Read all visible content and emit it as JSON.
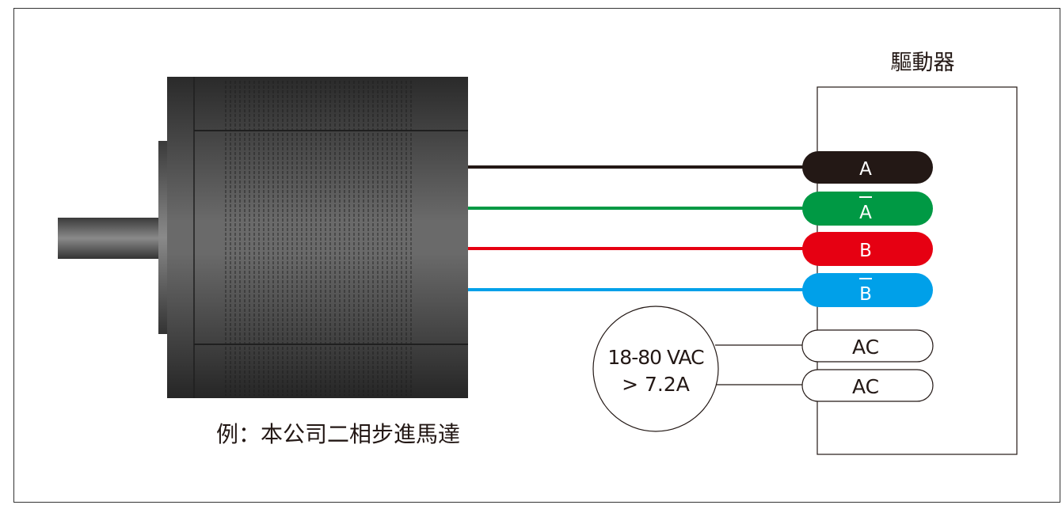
{
  "driver": {
    "title": "驅動器",
    "terminals": [
      {
        "label": "A",
        "bar": false,
        "color": "#231815",
        "text_color": "#ffffff"
      },
      {
        "label": "A",
        "bar": true,
        "color": "#009944",
        "text_color": "#ffffff"
      },
      {
        "label": "B",
        "bar": false,
        "color": "#e60012",
        "text_color": "#ffffff"
      },
      {
        "label": "B",
        "bar": true,
        "color": "#00a0e9",
        "text_color": "#ffffff"
      },
      {
        "label": "AC",
        "bar": false,
        "color": "#ffffff",
        "text_color": "#231815"
      },
      {
        "label": "AC",
        "bar": false,
        "color": "#ffffff",
        "text_color": "#231815"
      }
    ]
  },
  "power_supply": {
    "line1": "18-80 VAC",
    "line2": "> 7.2A"
  },
  "motor": {
    "caption": "例：本公司二相步進馬達"
  }
}
